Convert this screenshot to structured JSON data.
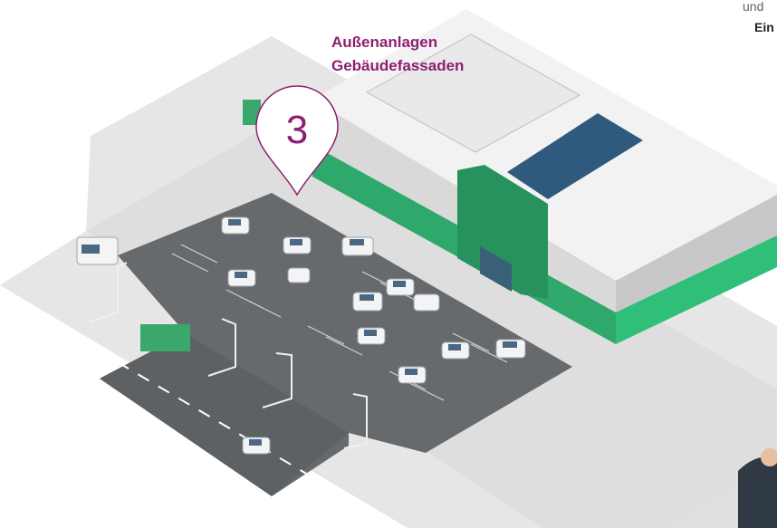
{
  "headline": {
    "line1": "Außenanlagen",
    "line2": "Gebäudefassaden"
  },
  "pin": {
    "number": "3"
  },
  "side_text": {
    "line1": "und",
    "line2": "Ein"
  }
}
